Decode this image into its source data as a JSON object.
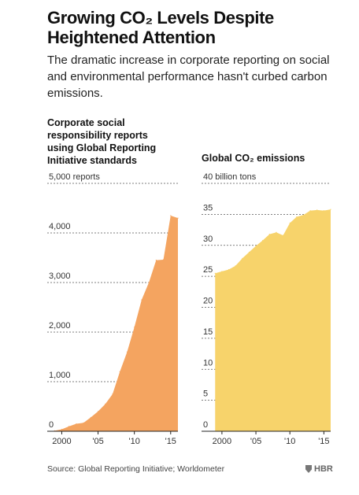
{
  "title": "Growing CO₂ Levels Despite Heightened Attention",
  "subtitle": "The dramatic increase in corporate reporting on social and environmental performance hasn't curbed carbon emissions.",
  "source": "Source: Global Reporting Initiative; Worldometer",
  "brand": "HBR",
  "chart_data": [
    {
      "type": "area",
      "title": "Corporate social responsibility reports using Global Reporting Initiative standards",
      "color": "#F4A460",
      "ylim": [
        0,
        5000
      ],
      "ytick_values": [
        0,
        1000,
        2000,
        3000,
        4000,
        5000
      ],
      "ytick_labels": [
        "0",
        "1,000",
        "2,000",
        "3,000",
        "4,000",
        "5,000 reports"
      ],
      "xlim": [
        1998,
        2016
      ],
      "xtick_values": [
        2000,
        2005,
        2010,
        2015
      ],
      "xtick_labels": [
        "2000",
        "'05",
        "'10",
        "'15"
      ],
      "grid": true,
      "x": [
        1999,
        2000,
        2001,
        2002,
        2003,
        2004,
        2005,
        2006,
        2007,
        2008,
        2009,
        2010,
        2011,
        2012,
        2013,
        2014,
        2015,
        2016
      ],
      "y": [
        10,
        40,
        100,
        150,
        170,
        280,
        400,
        550,
        750,
        1200,
        1600,
        2100,
        2650,
        3000,
        3450,
        3460,
        4350,
        4300
      ]
    },
    {
      "type": "area",
      "title": "Global CO₂ emissions",
      "color": "#F7D36B",
      "ylim": [
        0,
        40
      ],
      "ytick_values": [
        0,
        5,
        10,
        15,
        20,
        25,
        30,
        35,
        40
      ],
      "ytick_labels": [
        "0",
        "5",
        "10",
        "15",
        "20",
        "25",
        "30",
        "35",
        "40 billion tons"
      ],
      "xlim": [
        1997,
        2016
      ],
      "xtick_values": [
        2000,
        2005,
        2010,
        2015
      ],
      "xtick_labels": [
        "2000",
        "'05",
        "'10",
        "'15"
      ],
      "grid": true,
      "x": [
        1999,
        2000,
        2001,
        2002,
        2003,
        2004,
        2005,
        2006,
        2007,
        2008,
        2009,
        2010,
        2011,
        2012,
        2013,
        2014,
        2015,
        2016
      ],
      "y": [
        25.5,
        25.8,
        26.1,
        26.7,
        27.9,
        28.9,
        29.9,
        30.8,
        31.8,
        32.1,
        31.6,
        33.6,
        34.6,
        34.9,
        35.6,
        35.7,
        35.6,
        35.8
      ]
    }
  ]
}
